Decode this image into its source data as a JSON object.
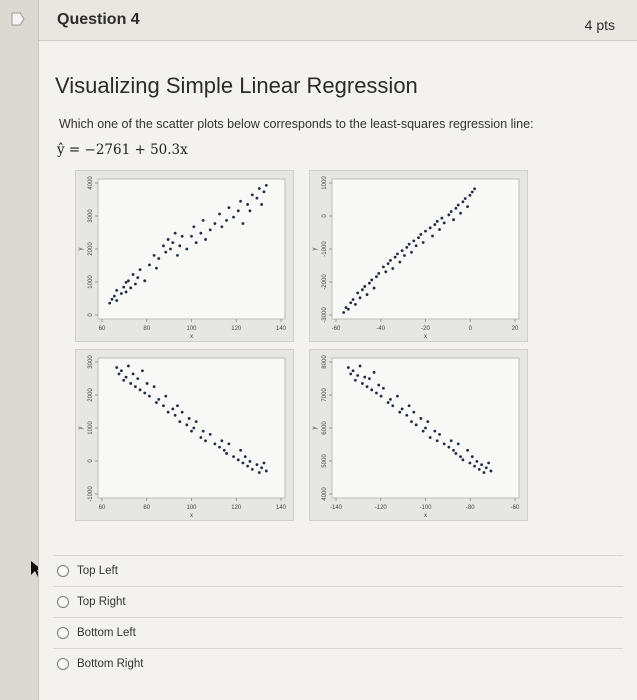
{
  "question": {
    "title": "Question 4",
    "points": "4 pts",
    "heading": "Visualizing Simple Linear Regression",
    "prompt": "Which one of the scatter plots below corresponds to the least-squares regression line:",
    "equation": "ŷ = −2761 + 50.3x"
  },
  "options": [
    {
      "label": "Top Left"
    },
    {
      "label": "Top Right"
    },
    {
      "label": "Bottom Left"
    },
    {
      "label": "Bottom Right"
    }
  ],
  "chart_data": [
    {
      "type": "scatter",
      "position": "top-left",
      "xlabel": "x",
      "ylabel": "y",
      "xticks": [
        "60",
        "80",
        "100",
        "120",
        "140"
      ],
      "yticks": [
        "0",
        "1000",
        "2000",
        "3000",
        "4000"
      ],
      "xlim": [
        60,
        140
      ],
      "ylim": [
        -200,
        4200
      ],
      "x": [
        65,
        66,
        67,
        68,
        68,
        70,
        71,
        72,
        72,
        73,
        74,
        75,
        76,
        77,
        78,
        80,
        82,
        84,
        85,
        86,
        88,
        89,
        90,
        91,
        92,
        93,
        94,
        95,
        96,
        98,
        100,
        101,
        102,
        104,
        105,
        106,
        108,
        110,
        112,
        113,
        115,
        116,
        118,
        120,
        121,
        122,
        124,
        125,
        126,
        128,
        129,
        130,
        131,
        132
      ],
      "y": [
        300,
        420,
        520,
        380,
        700,
        600,
        800,
        950,
        650,
        1000,
        780,
        1200,
        900,
        1100,
        1350,
        1000,
        1500,
        1800,
        1400,
        1700,
        2100,
        1900,
        2300,
        2000,
        2200,
        2500,
        1800,
        2100,
        2400,
        2000,
        2400,
        2700,
        2200,
        2500,
        2900,
        2300,
        2600,
        2800,
        3100,
        2700,
        2900,
        3300,
        3000,
        3200,
        3500,
        2800,
        3400,
        3200,
        3700,
        3600,
        3900,
        3400,
        3800,
        4000
      ]
    },
    {
      "type": "scatter",
      "position": "top-right",
      "xlabel": "x",
      "ylabel": "y",
      "xticks": [
        "-60",
        "-40",
        "-20",
        "0",
        "20"
      ],
      "yticks": [
        "-3000",
        "-2000",
        "-1000",
        "0",
        "1000"
      ],
      "xlim": [
        -60,
        20
      ],
      "ylim": [
        -3100,
        1200
      ],
      "x": [
        -55,
        -54,
        -53,
        -52,
        -51,
        -50,
        -49,
        -48,
        -47,
        -46,
        -45,
        -44,
        -43,
        -42,
        -41,
        -40,
        -38,
        -37,
        -36,
        -35,
        -34,
        -33,
        -32,
        -31,
        -30,
        -29,
        -28,
        -27,
        -26,
        -25,
        -24,
        -23,
        -22,
        -21,
        -20,
        -18,
        -17,
        -16,
        -15,
        -14,
        -13,
        -12,
        -10,
        -9,
        -8,
        -7,
        -6,
        -5,
        -4,
        -3,
        -2,
        -1,
        0,
        1
      ],
      "y": [
        -2900,
        -2750,
        -2800,
        -2600,
        -2500,
        -2650,
        -2300,
        -2450,
        -2200,
        -2100,
        -2350,
        -2000,
        -1900,
        -2150,
        -1800,
        -1700,
        -1500,
        -1650,
        -1400,
        -1300,
        -1550,
        -1200,
        -1100,
        -1350,
        -1000,
        -1150,
        -900,
        -800,
        -1050,
        -700,
        -850,
        -600,
        -500,
        -750,
        -400,
        -300,
        -550,
        -200,
        -100,
        -350,
        0,
        -150,
        100,
        200,
        -50,
        300,
        400,
        150,
        500,
        600,
        350,
        700,
        800,
        900
      ]
    },
    {
      "type": "scatter",
      "position": "bottom-left",
      "xlabel": "x",
      "ylabel": "y",
      "xticks": [
        "60",
        "80",
        "100",
        "120",
        "140"
      ],
      "yticks": [
        "-1000",
        "0",
        "1000",
        "2000",
        "3000"
      ],
      "xlim": [
        60,
        140
      ],
      "ylim": [
        -1200,
        3200
      ],
      "x": [
        68,
        69,
        70,
        71,
        72,
        73,
        74,
        75,
        76,
        77,
        78,
        79,
        80,
        81,
        82,
        84,
        85,
        86,
        88,
        89,
        90,
        92,
        93,
        94,
        95,
        96,
        98,
        99,
        100,
        101,
        102,
        104,
        105,
        106,
        108,
        110,
        112,
        113,
        114,
        115,
        116,
        118,
        120,
        121,
        122,
        123,
        124,
        125,
        126,
        128,
        129,
        130,
        131,
        132
      ],
      "y": [
        2900,
        2700,
        2800,
        2500,
        2600,
        2950,
        2400,
        2700,
        2300,
        2550,
        2200,
        2800,
        2100,
        2400,
        2000,
        2300,
        1800,
        1900,
        1700,
        2000,
        1500,
        1600,
        1400,
        1700,
        1200,
        1500,
        1100,
        1300,
        900,
        1000,
        1200,
        700,
        900,
        600,
        800,
        500,
        400,
        600,
        300,
        200,
        500,
        100,
        0,
        300,
        -100,
        100,
        -200,
        -50,
        -300,
        -150,
        -400,
        -250,
        -100,
        -350
      ]
    },
    {
      "type": "scatter",
      "position": "bottom-right",
      "xlabel": "x",
      "ylabel": "y",
      "xticks": [
        "-140",
        "-120",
        "-100",
        "-80",
        "-60"
      ],
      "yticks": [
        "4000",
        "5000",
        "6000",
        "7000",
        "8000"
      ],
      "xlim": [
        -140,
        -60
      ],
      "ylim": [
        3800,
        8200
      ],
      "x": [
        -133,
        -132,
        -131,
        -130,
        -129,
        -128,
        -127,
        -126,
        -125,
        -124,
        -123,
        -122,
        -121,
        -120,
        -119,
        -118,
        -116,
        -115,
        -114,
        -112,
        -111,
        -110,
        -108,
        -107,
        -106,
        -105,
        -104,
        -102,
        -101,
        -100,
        -99,
        -98,
        -96,
        -95,
        -94,
        -92,
        -90,
        -89,
        -88,
        -87,
        -86,
        -85,
        -84,
        -82,
        -81,
        -80,
        -79,
        -78,
        -77,
        -76,
        -75,
        -74,
        -73,
        -72
      ],
      "y": [
        7900,
        7700,
        7800,
        7500,
        7650,
        7950,
        7400,
        7600,
        7300,
        7550,
        7200,
        7750,
        7100,
        7350,
        7000,
        7250,
        6800,
        6900,
        6700,
        7000,
        6500,
        6600,
        6400,
        6700,
        6200,
        6500,
        6100,
        6300,
        5900,
        6000,
        6200,
        5700,
        5900,
        5600,
        5800,
        5500,
        5400,
        5600,
        5300,
        5200,
        5500,
        5100,
        5000,
        5300,
        4900,
        5100,
        4800,
        4950,
        4700,
        4850,
        4600,
        4750,
        4900,
        4650
      ]
    }
  ]
}
